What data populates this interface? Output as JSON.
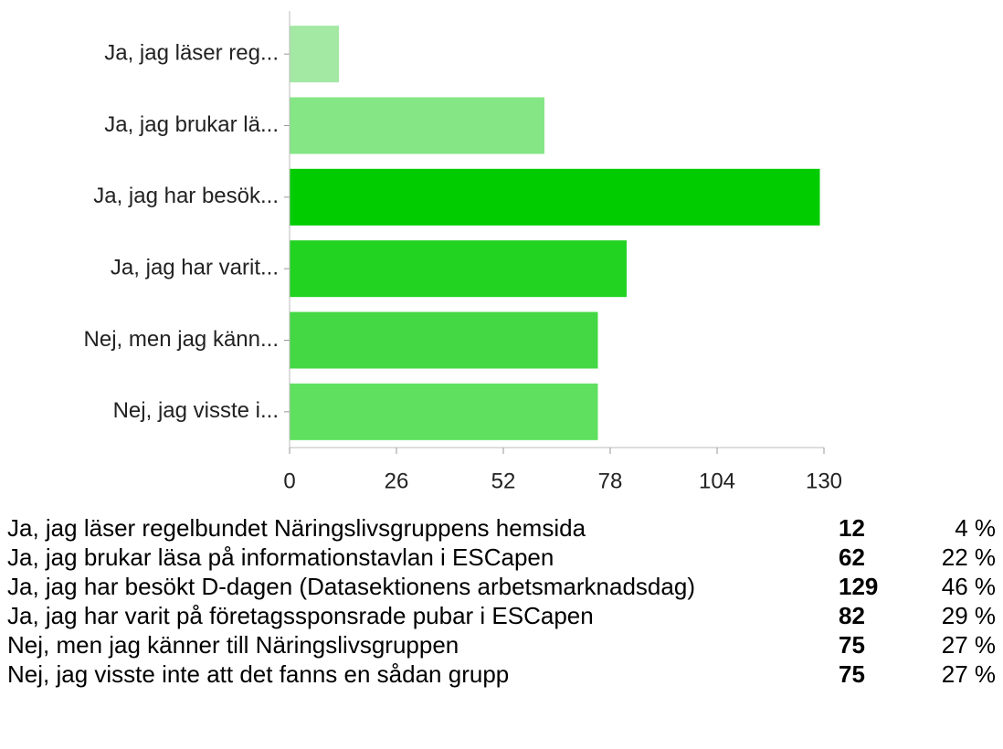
{
  "chart_data": {
    "type": "bar",
    "orientation": "horizontal",
    "categories": [
      "Ja, jag läser reg...",
      "Ja, jag brukar lä...",
      "Ja, jag har besök...",
      "Ja, jag har varit...",
      "Nej, men jag känn...",
      "Nej, jag visste i..."
    ],
    "values": [
      12,
      62,
      129,
      82,
      75,
      75
    ],
    "colors": [
      "#a3e8a3",
      "#84e684",
      "#00cc00",
      "#22d322",
      "#44d844",
      "#5fe05f"
    ],
    "xlim": [
      0,
      130
    ],
    "xticks": [
      0,
      26,
      52,
      78,
      104,
      130
    ],
    "grid": false
  },
  "table": {
    "rows": [
      [
        "Ja, jag läser regelbundet Näringslivsgruppens hemsida",
        "12",
        "4 %"
      ],
      [
        "Ja, jag brukar läsa på informationstavlan i ESCapen",
        "62",
        "22 %"
      ],
      [
        "Ja, jag har besökt D-dagen (Datasektionens arbetsmarknadsdag)",
        "129",
        "46 %"
      ],
      [
        "Ja, jag har varit på företagssponsrade pubar i ESCapen",
        "82",
        "29 %"
      ],
      [
        "Nej, men jag känner till Näringslivsgruppen",
        "75",
        "27 %"
      ],
      [
        "Nej, jag visste inte att det fanns en sådan grupp",
        "75",
        "27 %"
      ]
    ]
  }
}
